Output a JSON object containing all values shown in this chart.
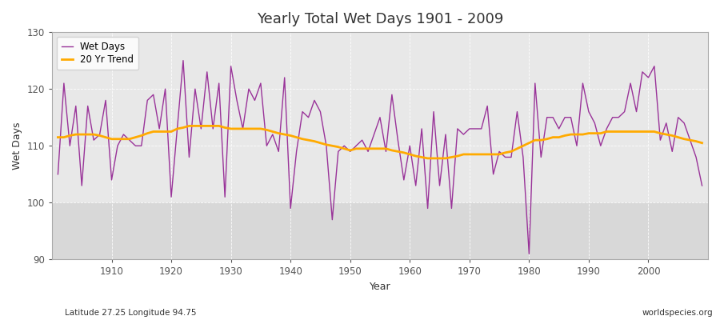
{
  "title": "Yearly Total Wet Days 1901 - 2009",
  "xlabel": "Year",
  "ylabel": "Wet Days",
  "lat_lon_label": "Latitude 27.25 Longitude 94.75",
  "watermark": "worldspecies.org",
  "ylim": [
    90,
    130
  ],
  "yticks": [
    90,
    100,
    110,
    120,
    130
  ],
  "xlim": [
    1901,
    2009
  ],
  "line_color": "#993399",
  "trend_color": "#ffaa00",
  "fig_bg_color": "#ffffff",
  "plot_bg_color": "#e8e8e8",
  "plot_bg_lower": "#d8d8d8",
  "years": [
    1901,
    1902,
    1903,
    1904,
    1905,
    1906,
    1907,
    1908,
    1909,
    1910,
    1911,
    1912,
    1913,
    1914,
    1915,
    1916,
    1917,
    1918,
    1919,
    1920,
    1921,
    1922,
    1923,
    1924,
    1925,
    1926,
    1927,
    1928,
    1929,
    1930,
    1931,
    1932,
    1933,
    1934,
    1935,
    1936,
    1937,
    1938,
    1939,
    1940,
    1941,
    1942,
    1943,
    1944,
    1945,
    1946,
    1947,
    1948,
    1949,
    1950,
    1951,
    1952,
    1953,
    1954,
    1955,
    1956,
    1957,
    1958,
    1959,
    1960,
    1961,
    1962,
    1963,
    1964,
    1965,
    1966,
    1967,
    1968,
    1969,
    1970,
    1971,
    1972,
    1973,
    1974,
    1975,
    1976,
    1977,
    1978,
    1979,
    1980,
    1981,
    1982,
    1983,
    1984,
    1985,
    1986,
    1987,
    1988,
    1989,
    1990,
    1991,
    1992,
    1993,
    1994,
    1995,
    1996,
    1997,
    1998,
    1999,
    2000,
    2001,
    2002,
    2003,
    2004,
    2005,
    2006,
    2007,
    2008,
    2009
  ],
  "wet_days": [
    105,
    121,
    110,
    117,
    103,
    117,
    111,
    112,
    118,
    104,
    110,
    112,
    111,
    110,
    110,
    118,
    119,
    113,
    120,
    101,
    113,
    125,
    108,
    120,
    113,
    123,
    113,
    121,
    101,
    124,
    118,
    113,
    120,
    118,
    121,
    110,
    112,
    109,
    122,
    99,
    109,
    116,
    115,
    118,
    116,
    110,
    97,
    109,
    110,
    109,
    110,
    111,
    109,
    112,
    115,
    109,
    119,
    111,
    104,
    110,
    103,
    113,
    99,
    116,
    103,
    112,
    99,
    113,
    112,
    113,
    113,
    113,
    117,
    105,
    109,
    108,
    108,
    116,
    108,
    91,
    121,
    108,
    115,
    115,
    113,
    115,
    115,
    110,
    121,
    116,
    114,
    110,
    113,
    115,
    115,
    116,
    121,
    116,
    123,
    122,
    124,
    111,
    114,
    109,
    115,
    114,
    111,
    108,
    103
  ],
  "trend": [
    111.5,
    111.5,
    111.8,
    112.0,
    112.0,
    112.0,
    112.0,
    111.8,
    111.5,
    111.2,
    111.2,
    111.2,
    111.2,
    111.5,
    111.8,
    112.2,
    112.5,
    112.5,
    112.5,
    112.5,
    113.0,
    113.2,
    113.5,
    113.5,
    113.5,
    113.5,
    113.5,
    113.5,
    113.2,
    113.0,
    113.0,
    113.0,
    113.0,
    113.0,
    113.0,
    112.8,
    112.5,
    112.2,
    112.0,
    111.8,
    111.5,
    111.2,
    111.0,
    110.8,
    110.5,
    110.2,
    110.0,
    109.8,
    109.5,
    109.2,
    109.5,
    109.5,
    109.5,
    109.5,
    109.5,
    109.5,
    109.2,
    109.0,
    108.8,
    108.5,
    108.2,
    108.0,
    107.8,
    107.8,
    107.8,
    107.8,
    108.0,
    108.2,
    108.5,
    108.5,
    108.5,
    108.5,
    108.5,
    108.5,
    108.5,
    108.8,
    109.0,
    109.5,
    110.0,
    110.5,
    111.0,
    111.0,
    111.2,
    111.5,
    111.5,
    111.8,
    112.0,
    112.0,
    112.0,
    112.2,
    112.2,
    112.2,
    112.5,
    112.5,
    112.5,
    112.5,
    112.5,
    112.5,
    112.5,
    112.5,
    112.5,
    112.2,
    112.0,
    111.8,
    111.5,
    111.2,
    111.0,
    110.8,
    110.5
  ]
}
